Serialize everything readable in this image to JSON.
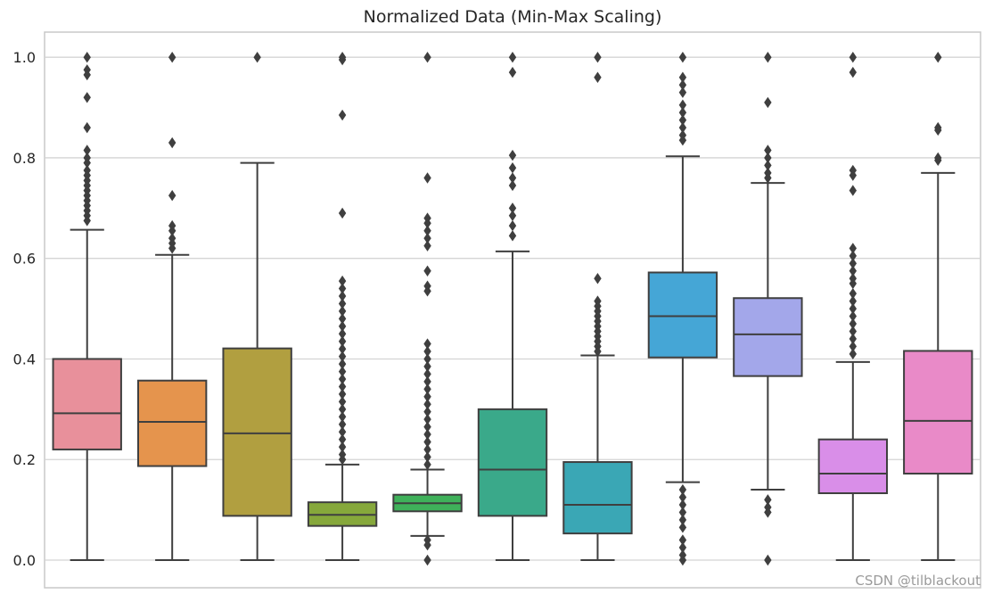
{
  "chart_data": {
    "type": "box",
    "title": "Normalized Data (Min-Max Scaling)",
    "xlabel": "",
    "ylabel": "",
    "ylim": [
      -0.055,
      1.05
    ],
    "yticks": [
      0.0,
      0.2,
      0.4,
      0.6,
      0.8,
      1.0
    ],
    "ytick_labels": [
      "0.0",
      "0.2",
      "0.4",
      "0.6",
      "0.8",
      "1.0"
    ],
    "grid": "horizontal",
    "legend": "none",
    "boxes": [
      {
        "color": "#e8909b",
        "whisker_low": 0.0,
        "q1": 0.22,
        "median": 0.292,
        "q3": 0.4,
        "whisker_high": 0.657,
        "outliers": [
          1.0,
          0.975,
          0.965,
          0.92,
          0.86,
          0.815,
          0.8,
          0.79,
          0.775,
          0.765,
          0.755,
          0.745,
          0.735,
          0.725,
          0.715,
          0.705,
          0.695,
          0.685,
          0.675
        ]
      },
      {
        "color": "#e5944d",
        "whisker_low": 0.0,
        "q1": 0.187,
        "median": 0.275,
        "q3": 0.357,
        "whisker_high": 0.607,
        "outliers": [
          1.0,
          0.83,
          0.725,
          0.665,
          0.655,
          0.64,
          0.63,
          0.62
        ]
      },
      {
        "color": "#b19f40",
        "whisker_low": 0.0,
        "q1": 0.088,
        "median": 0.252,
        "q3": 0.421,
        "whisker_high": 0.79,
        "outliers": [
          1.0
        ]
      },
      {
        "color": "#86a83b",
        "whisker_low": 0.0,
        "q1": 0.068,
        "median": 0.09,
        "q3": 0.115,
        "whisker_high": 0.19,
        "outliers": [
          1.0,
          0.995,
          0.885,
          0.69,
          0.555,
          0.54,
          0.525,
          0.51,
          0.495,
          0.48,
          0.465,
          0.45,
          0.435,
          0.42,
          0.405,
          0.39,
          0.375,
          0.36,
          0.345,
          0.33,
          0.315,
          0.3,
          0.285,
          0.27,
          0.255,
          0.24,
          0.225,
          0.21,
          0.2
        ]
      },
      {
        "color": "#3fb15a",
        "whisker_low": 0.048,
        "q1": 0.097,
        "median": 0.113,
        "q3": 0.13,
        "whisker_high": 0.18,
        "outliers": [
          1.0,
          0.76,
          0.68,
          0.67,
          0.655,
          0.64,
          0.625,
          0.575,
          0.545,
          0.535,
          0.43,
          0.415,
          0.4,
          0.385,
          0.37,
          0.355,
          0.34,
          0.325,
          0.31,
          0.295,
          0.28,
          0.265,
          0.25,
          0.235,
          0.22,
          0.205,
          0.19,
          0.04,
          0.03,
          0.0
        ]
      },
      {
        "color": "#3aa98a",
        "whisker_low": 0.0,
        "q1": 0.088,
        "median": 0.18,
        "q3": 0.3,
        "whisker_high": 0.614,
        "outliers": [
          1.0,
          0.97,
          0.805,
          0.78,
          0.76,
          0.745,
          0.7,
          0.685,
          0.665,
          0.645
        ]
      },
      {
        "color": "#3aa7b5",
        "whisker_low": 0.0,
        "q1": 0.053,
        "median": 0.11,
        "q3": 0.195,
        "whisker_high": 0.407,
        "outliers": [
          1.0,
          0.96,
          0.56,
          0.515,
          0.505,
          0.495,
          0.485,
          0.475,
          0.465,
          0.455,
          0.445,
          0.435,
          0.425,
          0.415
        ]
      },
      {
        "color": "#45a6d6",
        "whisker_low": 0.155,
        "q1": 0.403,
        "median": 0.485,
        "q3": 0.572,
        "whisker_high": 0.803,
        "outliers": [
          1.0,
          0.96,
          0.945,
          0.93,
          0.905,
          0.89,
          0.875,
          0.86,
          0.845,
          0.835,
          0.14,
          0.125,
          0.11,
          0.095,
          0.08,
          0.065,
          0.04,
          0.025,
          0.01,
          0.0
        ]
      },
      {
        "color": "#a3a7ea",
        "whisker_low": 0.14,
        "q1": 0.366,
        "median": 0.449,
        "q3": 0.521,
        "whisker_high": 0.75,
        "outliers": [
          1.0,
          0.91,
          0.815,
          0.8,
          0.785,
          0.77,
          0.76,
          0.12,
          0.105,
          0.095,
          0.0
        ]
      },
      {
        "color": "#d98ee8",
        "whisker_low": 0.0,
        "q1": 0.133,
        "median": 0.172,
        "q3": 0.24,
        "whisker_high": 0.394,
        "outliers": [
          1.0,
          0.97,
          0.775,
          0.765,
          0.735,
          0.62,
          0.605,
          0.59,
          0.575,
          0.56,
          0.55,
          0.53,
          0.515,
          0.5,
          0.485,
          0.47,
          0.455,
          0.44,
          0.425,
          0.41
        ]
      },
      {
        "color": "#e98ac8",
        "whisker_low": 0.0,
        "q1": 0.172,
        "median": 0.277,
        "q3": 0.416,
        "whisker_high": 0.77,
        "outliers": [
          1.0,
          0.86,
          0.855,
          0.8,
          0.795
        ]
      }
    ]
  },
  "watermark": "CSDN @tilblackout"
}
